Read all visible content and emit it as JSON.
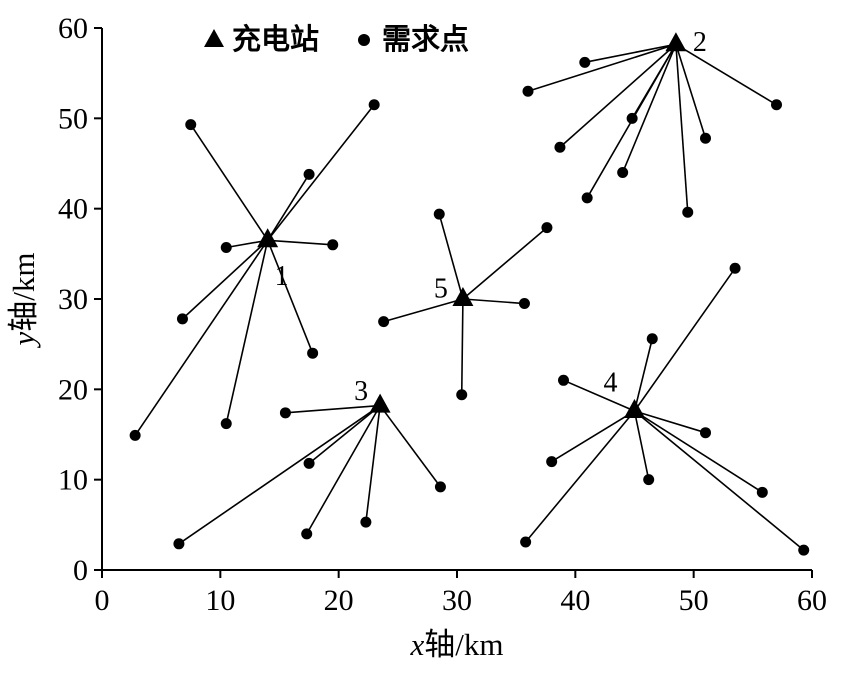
{
  "chart_data": {
    "type": "scatter",
    "title": "",
    "xlabel": "x轴/km",
    "ylabel": "y轴/km",
    "xlabel_parts": {
      "italic": "x",
      "rest": "轴/km"
    },
    "ylabel_parts": {
      "italic": "y",
      "rest": "轴/km"
    },
    "xlim": [
      0,
      60
    ],
    "ylim": [
      0,
      60
    ],
    "xticks": [
      0,
      10,
      20,
      30,
      40,
      50,
      60
    ],
    "yticks": [
      0,
      10,
      20,
      30,
      40,
      50,
      60
    ],
    "grid": false,
    "color": "#000000",
    "legend_position": "top-inside",
    "legend": [
      {
        "marker": "triangle-icon",
        "label": "充电站"
      },
      {
        "marker": "dot-icon",
        "label": "需求点"
      }
    ],
    "stations": [
      {
        "id": "1",
        "x": 14,
        "y": 36.5,
        "label_offset": [
          14,
          36
        ],
        "demand_points": [
          [
            7.5,
            49.3
          ],
          [
            23.0,
            51.5
          ],
          [
            17.5,
            43.8
          ],
          [
            10.5,
            35.7
          ],
          [
            19.5,
            36.0
          ],
          [
            6.8,
            27.8
          ],
          [
            17.8,
            24.0
          ],
          [
            10.5,
            16.2
          ],
          [
            2.8,
            14.9
          ]
        ]
      },
      {
        "id": "2",
        "x": 48.5,
        "y": 58.2,
        "label_offset": [
          24,
          -2
        ],
        "demand_points": [
          [
            36.0,
            53.0
          ],
          [
            40.8,
            56.2
          ],
          [
            38.7,
            46.8
          ],
          [
            41.0,
            41.2
          ],
          [
            44.8,
            50.0
          ],
          [
            44.0,
            44.0
          ],
          [
            49.5,
            39.6
          ],
          [
            51.0,
            47.8
          ],
          [
            57.0,
            51.5
          ]
        ]
      },
      {
        "id": "3",
        "x": 23.5,
        "y": 18.2,
        "label_offset": [
          -19,
          -14
        ],
        "demand_points": [
          [
            15.5,
            17.4
          ],
          [
            6.5,
            2.9
          ],
          [
            17.5,
            11.8
          ],
          [
            17.3,
            4.0
          ],
          [
            22.3,
            5.3
          ],
          [
            28.6,
            9.2
          ]
        ]
      },
      {
        "id": "4",
        "x": 45.0,
        "y": 17.6,
        "label_offset": [
          -24,
          -28
        ],
        "demand_points": [
          [
            39.0,
            21.0
          ],
          [
            38.0,
            12.0
          ],
          [
            35.8,
            3.1
          ],
          [
            46.5,
            25.6
          ],
          [
            46.2,
            10.0
          ],
          [
            51.0,
            15.2
          ],
          [
            53.5,
            33.4
          ],
          [
            55.8,
            8.6
          ],
          [
            59.3,
            2.2
          ]
        ]
      },
      {
        "id": "5",
        "x": 30.5,
        "y": 30.0,
        "label_offset": [
          -22,
          -10
        ],
        "demand_points": [
          [
            23.8,
            27.5
          ],
          [
            28.5,
            39.4
          ],
          [
            30.4,
            19.4
          ],
          [
            35.7,
            29.5
          ],
          [
            37.6,
            37.9
          ]
        ]
      }
    ]
  }
}
